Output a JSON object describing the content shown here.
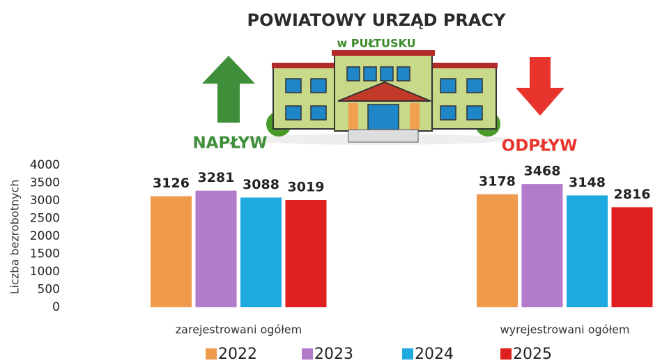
{
  "chart_data": {
    "type": "bar",
    "title": "POWIATOWY URZĄD PRACY",
    "subtitle": "w PUŁTUSKU",
    "annotations": [
      "NAPŁYW",
      "ODPŁYW"
    ],
    "y_label": "Liczba bezrobotnych",
    "categories": [
      "zarejestrowani ogółem",
      "wyrejestrowani ogółem"
    ],
    "series": [
      {
        "name": "2022",
        "color": "#f09a4c",
        "values": [
          3126,
          3178
        ]
      },
      {
        "name": "2023",
        "color": "#b27ccb",
        "values": [
          3281,
          3468
        ]
      },
      {
        "name": "2024",
        "color": "#1fa9e1",
        "values": [
          3088,
          3148
        ]
      },
      {
        "name": "2025",
        "color": "#e0201f",
        "values": [
          3019,
          2816
        ]
      }
    ],
    "ylim": [
      0,
      4000
    ],
    "yticks": [
      0,
      500,
      1000,
      1500,
      2000,
      2500,
      3000,
      3500,
      4000
    ],
    "grid": false
  }
}
